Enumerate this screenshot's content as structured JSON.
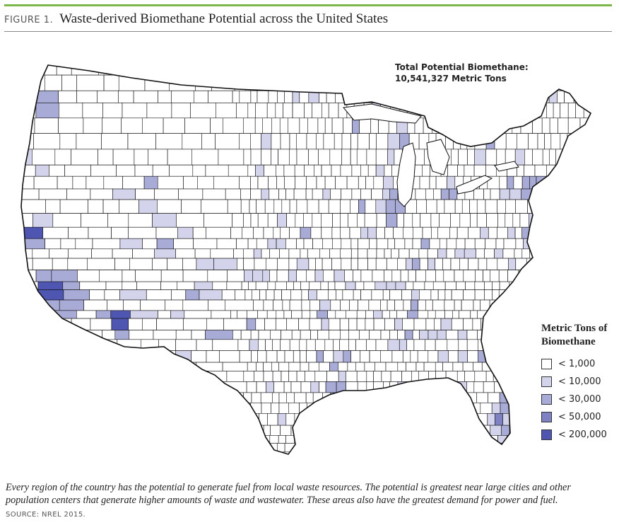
{
  "figure": {
    "label": "FIGURE 1.",
    "title": "Waste-derived Biomethane Potential across the United States",
    "accent_color": "#7ab648"
  },
  "map": {
    "subject": "United States counties",
    "total_label": "Total Potential Biomethane:",
    "total_value": "10,541,327 Metric Tons",
    "class_colors": [
      "#ffffff",
      "#d3d4ec",
      "#a9abd7",
      "#7f82c2",
      "#4f56b2"
    ],
    "border_color": "#111111",
    "highlighted_areas": [
      {
        "name": "Los Angeles area",
        "class": 4
      },
      {
        "name": "Phoenix area",
        "class": 4
      },
      {
        "name": "San Francisco Bay area",
        "class": 4
      },
      {
        "name": "Seattle area",
        "class": 4
      },
      {
        "name": "Chicago area",
        "class": 4
      },
      {
        "name": "Houston area",
        "class": 4
      },
      {
        "name": "New York area",
        "class": 4
      },
      {
        "name": "Miami area",
        "class": 3
      }
    ]
  },
  "legend": {
    "title_line1": "Metric Tons of",
    "title_line2": "Biomethane",
    "items": [
      {
        "label": "< 1,000",
        "color": "#ffffff"
      },
      {
        "label": "< 10,000",
        "color": "#d3d4ec"
      },
      {
        "label": "< 30,000",
        "color": "#a9abd7"
      },
      {
        "label": "< 50,000",
        "color": "#7f82c2"
      },
      {
        "label": "< 200,000",
        "color": "#4f56b2"
      }
    ]
  },
  "caption": "Every region of the country has the potential to generate fuel from local waste resources. The potential is greatest near large cities and other population centers that generate higher amounts of waste and wastewater. These areas also have the greatest demand for power and fuel.",
  "source": "SOURCE: NREL 2015."
}
